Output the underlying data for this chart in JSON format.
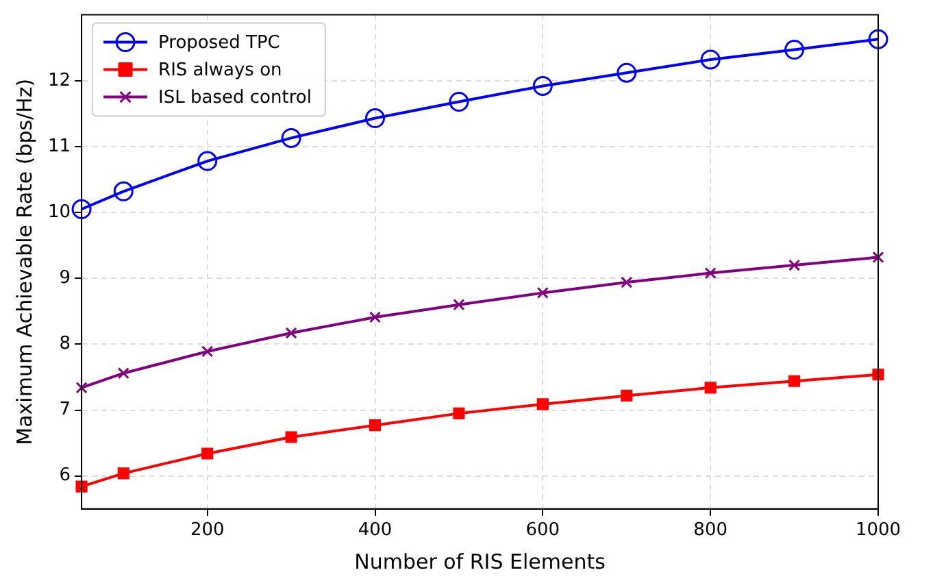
{
  "chart_data": {
    "type": "line",
    "xlabel": "Number of RIS Elements",
    "ylabel": "Maximum Achievable Rate (bps/Hz)",
    "x": [
      50,
      100,
      200,
      300,
      400,
      500,
      600,
      700,
      800,
      900,
      1000
    ],
    "xlim": [
      50,
      1000
    ],
    "xticks": [
      200,
      400,
      600,
      800,
      1000
    ],
    "ylim": [
      5.5,
      13
    ],
    "yticks": [
      6,
      7,
      8,
      9,
      10,
      11,
      12
    ],
    "grid": true,
    "legend": "top left",
    "line_style": "solid",
    "series": [
      {
        "name": "Proposed TPC",
        "color": "#0000ff",
        "marker": "circle",
        "values": [
          10.05,
          10.32,
          10.78,
          11.13,
          11.43,
          11.68,
          11.92,
          12.12,
          12.32,
          12.47,
          12.63
        ]
      },
      {
        "name": "RIS always on",
        "color": "#ff0000",
        "marker": "square",
        "values": [
          5.84,
          6.04,
          6.34,
          6.59,
          6.77,
          6.95,
          7.09,
          7.22,
          7.34,
          7.44,
          7.54
        ]
      },
      {
        "name": "ISL based control",
        "color": "#800080",
        "marker": "cross",
        "values": [
          7.34,
          7.56,
          7.89,
          8.17,
          8.41,
          8.6,
          8.78,
          8.94,
          9.08,
          9.2,
          9.32
        ]
      }
    ]
  }
}
